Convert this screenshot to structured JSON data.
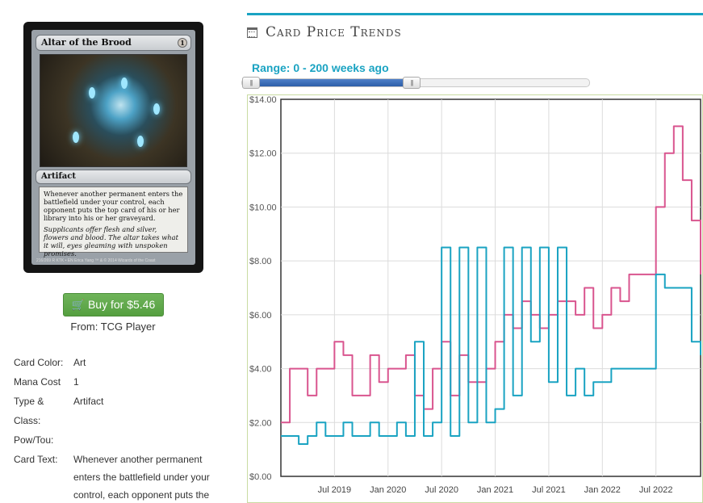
{
  "card": {
    "name": "Altar of the Brood",
    "mana_symbol": "1",
    "type_line": "Artifact",
    "rules_text": "Whenever another permanent enters the battlefield under your control, each opponent puts the top card of his or her library into his or her graveyard.",
    "flavor_text": "Supplicants offer flesh and silver, flowers and blood. The altar takes what it will, eyes gleaming with unspoken promises.",
    "footer": "216/269 R  KTK • EN  Erica Yang   ™ & © 2014 Wizards of the Coast"
  },
  "buy": {
    "label": "Buy for $5.46",
    "from": "From: TCG Player"
  },
  "details": [
    {
      "key": "Card Color:",
      "value": "Art"
    },
    {
      "key": "Mana Cost",
      "value": "1"
    },
    {
      "key": "Type & Class:",
      "value": "Artifact"
    },
    {
      "key": "Pow/Tou:",
      "value": ""
    },
    {
      "key": "Card Text:",
      "value": "Whenever another permanent enters the battlefield under your control, each opponent puts the top card of his or her"
    }
  ],
  "section": {
    "title": "Card Price Trends",
    "range_label": "Range: 0 - 200 weeks ago",
    "range_min": 0,
    "range_max": 200,
    "range_selected": [
      0,
      200
    ]
  },
  "colors": {
    "accent": "#1aa3c2",
    "series_pink": "#d9558f",
    "series_teal": "#1aa3c2",
    "buy_green": "#5ea94a"
  },
  "chart_data": {
    "type": "line",
    "title": "",
    "xlabel": "",
    "ylabel": "",
    "ylim": [
      0,
      14
    ],
    "y_ticks": [
      "$0.00",
      "$2.00",
      "$4.00",
      "$6.00",
      "$8.00",
      "$10.00",
      "$12.00",
      "$14.00"
    ],
    "x_tick_labels": [
      "Jul 2019",
      "Jan 2020",
      "Jul 2020",
      "Jan 2021",
      "Jul 2021",
      "Jan 2022",
      "Jul 2022"
    ],
    "x_tick_dates": [
      "2019-07",
      "2020-01",
      "2020-07",
      "2021-01",
      "2021-07",
      "2022-01",
      "2022-07"
    ],
    "xlim": [
      "2019-01",
      "2022-12"
    ],
    "grid": true,
    "series": [
      {
        "color": "#d9558f",
        "x": [
          "2019-01",
          "2019-02",
          "2019-03",
          "2019-04",
          "2019-05",
          "2019-06",
          "2019-07",
          "2019-08",
          "2019-09",
          "2019-10",
          "2019-11",
          "2019-12",
          "2020-01",
          "2020-02",
          "2020-03",
          "2020-04",
          "2020-05",
          "2020-06",
          "2020-07",
          "2020-08",
          "2020-09",
          "2020-10",
          "2020-11",
          "2020-12",
          "2021-01",
          "2021-02",
          "2021-03",
          "2021-04",
          "2021-05",
          "2021-06",
          "2021-07",
          "2021-08",
          "2021-09",
          "2021-10",
          "2021-11",
          "2021-12",
          "2022-01",
          "2022-02",
          "2022-03",
          "2022-04",
          "2022-05",
          "2022-06",
          "2022-07",
          "2022-08",
          "2022-09",
          "2022-10",
          "2022-11",
          "2022-12"
        ],
        "y": [
          2.0,
          4.0,
          4.0,
          3.0,
          4.0,
          4.0,
          5.0,
          4.5,
          3.0,
          3.0,
          4.5,
          3.5,
          4.0,
          4.0,
          4.5,
          3.0,
          2.5,
          4.0,
          5.0,
          3.0,
          4.5,
          3.5,
          3.5,
          4.0,
          5.0,
          6.0,
          5.5,
          6.5,
          6.0,
          5.5,
          6.0,
          6.5,
          6.5,
          6.0,
          7.0,
          5.5,
          6.0,
          7.0,
          6.5,
          7.5,
          7.5,
          7.5,
          10.0,
          12.0,
          13.0,
          11.0,
          9.5,
          7.5
        ]
      },
      {
        "color": "#1aa3c2",
        "x": [
          "2019-01",
          "2019-02",
          "2019-03",
          "2019-04",
          "2019-05",
          "2019-06",
          "2019-07",
          "2019-08",
          "2019-09",
          "2019-10",
          "2019-11",
          "2019-12",
          "2020-01",
          "2020-02",
          "2020-03",
          "2020-04",
          "2020-05",
          "2020-06",
          "2020-07",
          "2020-08",
          "2020-09",
          "2020-10",
          "2020-11",
          "2020-12",
          "2021-01",
          "2021-02",
          "2021-03",
          "2021-04",
          "2021-05",
          "2021-06",
          "2021-07",
          "2021-08",
          "2021-09",
          "2021-10",
          "2021-11",
          "2021-12",
          "2022-01",
          "2022-02",
          "2022-03",
          "2022-04",
          "2022-05",
          "2022-06",
          "2022-07",
          "2022-08",
          "2022-09",
          "2022-10",
          "2022-11",
          "2022-12"
        ],
        "y": [
          1.5,
          1.5,
          1.2,
          1.5,
          2.0,
          1.5,
          1.5,
          2.0,
          1.5,
          1.5,
          2.0,
          1.5,
          1.5,
          2.0,
          1.5,
          5.0,
          1.5,
          2.0,
          8.5,
          1.5,
          8.5,
          2.0,
          8.5,
          2.0,
          2.5,
          8.5,
          3.0,
          8.5,
          5.0,
          8.5,
          3.5,
          8.5,
          3.0,
          4.0,
          3.0,
          3.5,
          3.5,
          4.0,
          4.0,
          4.0,
          4.0,
          4.0,
          7.5,
          7.0,
          7.0,
          7.0,
          5.0,
          4.5
        ]
      }
    ]
  }
}
